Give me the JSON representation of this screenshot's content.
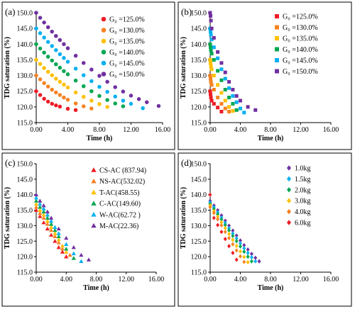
{
  "figure": {
    "colors": {
      "red": "#ee1c25",
      "orange": "#f58220",
      "yellow": "#ffc000",
      "green": "#00a651",
      "cyan": "#00b0f0",
      "purple": "#7030a0"
    }
  },
  "chart_data": [
    {
      "panel_label": "(a)",
      "type": "scatter",
      "marker": "circle",
      "xlabel": "Time (h)",
      "ylabel": "TDG saturation (%)",
      "xlim": [
        0,
        16
      ],
      "ylim": [
        115,
        150
      ],
      "x_ticks": [
        "0.00",
        "4.00",
        "8.00",
        "12.00",
        "16.00"
      ],
      "y_ticks": [
        "115.0",
        "120.0",
        "125.0",
        "130.0",
        "135.0",
        "140.0",
        "145.0",
        "150.0"
      ],
      "legend_position": "top-right",
      "series": [
        {
          "name": "G₀ =125.0%",
          "color": "#ee1c25",
          "x": [
            0,
            0.5,
            1,
            1.5,
            2,
            2.5,
            3,
            4,
            5
          ],
          "y": [
            125,
            123.8,
            122.6,
            121.7,
            121,
            120.5,
            120.1,
            119.4,
            119
          ]
        },
        {
          "name": "G₀ =130.0%",
          "color": "#f58220",
          "x": [
            0,
            0.5,
            1,
            1.5,
            2,
            2.5,
            3,
            3.5,
            4,
            5,
            6,
            7
          ],
          "y": [
            130,
            128.8,
            127.6,
            126.5,
            125.5,
            124.6,
            123.8,
            123,
            122.3,
            121.1,
            120.2,
            119.5
          ]
        },
        {
          "name": "G₀ =135.0%",
          "color": "#ffc000",
          "x": [
            0,
            0.5,
            1,
            1.5,
            2,
            2.5,
            3,
            3.5,
            4,
            5,
            6,
            7,
            8,
            9
          ],
          "y": [
            135,
            133.7,
            132.4,
            131.2,
            130.1,
            129,
            128,
            127.1,
            126.2,
            124.6,
            123.2,
            122,
            120.9,
            120
          ]
        },
        {
          "name": "G₀ =140.0%",
          "color": "#00a651",
          "x": [
            0,
            0.5,
            1,
            1.5,
            2,
            2.5,
            3,
            3.5,
            4,
            5,
            6,
            7,
            8,
            9,
            10,
            11
          ],
          "y": [
            140,
            138.6,
            137.3,
            136,
            134.8,
            133.6,
            132.5,
            131.4,
            130.4,
            128.4,
            126.6,
            125,
            123.5,
            122.2,
            121.1,
            120.2
          ]
        },
        {
          "name": "G₀ =145.0%",
          "color": "#00b0f0",
          "x": [
            0,
            0.5,
            1,
            1.5,
            2,
            2.5,
            3,
            3.5,
            4,
            5,
            6,
            7,
            8,
            9,
            10,
            11,
            12,
            13.5
          ],
          "y": [
            145,
            143.5,
            142.1,
            140.7,
            139.4,
            138.1,
            136.8,
            135.6,
            134.4,
            132.2,
            130.1,
            128.2,
            126.4,
            124.8,
            123.3,
            122,
            121,
            119.6
          ]
        },
        {
          "name": "G₀ =150.0%",
          "color": "#7030a0",
          "x": [
            0,
            0.5,
            1,
            1.5,
            2,
            2.5,
            3,
            3.5,
            4,
            5,
            6,
            7,
            8,
            9,
            10,
            11,
            12,
            13,
            14,
            15.5
          ],
          "y": [
            150,
            148.4,
            146.9,
            145.4,
            144,
            142.6,
            141.3,
            140,
            138.7,
            136.3,
            134,
            131.9,
            129.9,
            128,
            126.3,
            124.9,
            123.6,
            122.5,
            121.5,
            120.3
          ]
        }
      ]
    },
    {
      "panel_label": "(b)",
      "type": "scatter",
      "marker": "square",
      "xlabel": "Time (h)",
      "ylabel": "TDG saturation (%)",
      "xlim": [
        0,
        16
      ],
      "ylim": [
        115,
        150
      ],
      "x_ticks": [
        "0.00",
        "4.00",
        "8.00",
        "12.00",
        "16.00"
      ],
      "y_ticks": [
        "115.0",
        "120.0",
        "125.0",
        "130.0",
        "135.0",
        "140.0",
        "145.0",
        "150.0"
      ],
      "legend_position": "top-right",
      "series": [
        {
          "name": "G₀ =125.0%",
          "color": "#ee1c25",
          "x": [
            0,
            0.05,
            0.1,
            0.2,
            0.5,
            1,
            1.5
          ],
          "y": [
            125,
            124,
            123,
            122,
            121,
            119.8,
            118.5
          ]
        },
        {
          "name": "G₀ =130.0%",
          "color": "#f58220",
          "x": [
            0,
            0.05,
            0.1,
            0.2,
            0.5,
            1,
            1.5,
            2,
            2.5
          ],
          "y": [
            130,
            129,
            128,
            127,
            125.5,
            123,
            121,
            119.5,
            118.5
          ]
        },
        {
          "name": "G₀ =135.0%",
          "color": "#ffc000",
          "x": [
            0,
            0.05,
            0.1,
            0.2,
            0.5,
            1,
            1.5,
            2,
            2.5,
            3
          ],
          "y": [
            135,
            134,
            133,
            132,
            130,
            127,
            124.5,
            122,
            120,
            118.7
          ]
        },
        {
          "name": "G₀ =140.0%",
          "color": "#00a651",
          "x": [
            0,
            0.05,
            0.1,
            0.2,
            0.5,
            1,
            1.5,
            2,
            2.5,
            3,
            3.5
          ],
          "y": [
            140,
            139,
            138,
            137,
            135,
            131.5,
            128.5,
            125.5,
            123,
            121,
            119
          ]
        },
        {
          "name": "G₀ =145.0%",
          "color": "#00b0f0",
          "x": [
            0,
            0.05,
            0.1,
            0.2,
            0.5,
            1,
            1.5,
            2,
            2.5,
            3,
            3.5,
            4,
            4.5
          ],
          "y": [
            145,
            144,
            143,
            141.5,
            139,
            135.5,
            132,
            129,
            126,
            123.5,
            121.5,
            119.5,
            118.2
          ]
        },
        {
          "name": "G₀ =150.0%",
          "color": "#7030a0",
          "x": [
            0,
            0.05,
            0.1,
            0.2,
            0.5,
            1,
            1.5,
            2,
            2.5,
            3,
            3.5,
            4,
            5,
            6
          ],
          "y": [
            150,
            149,
            147.5,
            145,
            142,
            137.5,
            134,
            131,
            128,
            125.5,
            123.5,
            122,
            120,
            119
          ]
        }
      ]
    },
    {
      "panel_label": "(c)",
      "type": "scatter",
      "marker": "triangle",
      "xlabel": "Time (h)",
      "ylabel": "TDG saturation (%)",
      "xlim": [
        0,
        16
      ],
      "ylim": [
        115,
        150
      ],
      "x_ticks": [
        "0.00",
        "4.00",
        "8.00",
        "12.00",
        "16.00"
      ],
      "y_ticks": [
        "115.0",
        "120.0",
        "125.0",
        "130.0",
        "135.0",
        "140.0",
        "145.0",
        "150.0"
      ],
      "legend_position": "top-right",
      "series": [
        {
          "name": "CS-AC (837.94)",
          "color": "#ee1c25",
          "x": [
            0,
            0.5,
            1,
            1.5,
            2,
            2.5,
            3,
            3.5,
            4
          ],
          "y": [
            135,
            133,
            131,
            129,
            127,
            125,
            123,
            121.5,
            120
          ]
        },
        {
          "name": "NS-AC(532.02)",
          "color": "#f58220",
          "x": [
            0,
            0.5,
            1,
            1.5,
            2,
            2.5,
            3,
            3.5,
            4.5
          ],
          "y": [
            136,
            134,
            132.5,
            130.5,
            128.5,
            126.5,
            124.5,
            122.5,
            120.5
          ]
        },
        {
          "name": "T-AC(458.55)",
          "color": "#ffc000",
          "x": [
            0,
            0.5,
            1,
            1.5,
            2,
            2.5,
            3,
            3.5,
            4,
            5
          ],
          "y": [
            137,
            135,
            133.5,
            131.5,
            129.5,
            127.5,
            125.5,
            123.5,
            121.5,
            119.5
          ]
        },
        {
          "name": "C-AC(149.60)",
          "color": "#00a651",
          "x": [
            0,
            0.5,
            1,
            1.5,
            2,
            2.5,
            3,
            4,
            5
          ],
          "y": [
            138,
            136,
            134.5,
            132.5,
            130.5,
            128.5,
            126.5,
            122.5,
            119.5
          ]
        },
        {
          "name": "W-AC(62.72 )",
          "color": "#00b0f0",
          "x": [
            0,
            0.5,
            1,
            1.5,
            2,
            2.5,
            3,
            4,
            5,
            6
          ],
          "y": [
            139,
            137,
            135.5,
            133.5,
            131.5,
            129.5,
            127.5,
            124,
            121,
            118.5
          ]
        },
        {
          "name": "M-AC(22.36)",
          "color": "#7030a0",
          "x": [
            0,
            0.5,
            1,
            1.5,
            2,
            3,
            4,
            5,
            6,
            7
          ],
          "y": [
            140,
            138,
            136.5,
            134.5,
            132.5,
            129,
            126,
            123,
            120.5,
            119
          ]
        }
      ]
    },
    {
      "panel_label": "(d)",
      "type": "scatter",
      "marker": "diamond",
      "xlabel": "Time (h)",
      "ylabel": "TDG saturation (%)",
      "xlim": [
        0,
        16
      ],
      "ylim": [
        115,
        150
      ],
      "x_ticks": [
        "0.00",
        "4.00",
        "8.00",
        "12.00",
        "16.00"
      ],
      "y_ticks": [
        "115.0",
        "120.0",
        "125.0",
        "130.0",
        "135.0",
        "140.0",
        "145.0",
        "150.0"
      ],
      "legend_position": "top-right",
      "series": [
        {
          "name": "1.0kg",
          "color": "#7030a0",
          "x": [
            0,
            0.5,
            1,
            1.5,
            2,
            2.5,
            3,
            3.5,
            4,
            4.5,
            5,
            5.5,
            6,
            6.5
          ],
          "y": [
            138,
            136.5,
            135,
            133.3,
            131.6,
            130,
            128.4,
            126.8,
            125.2,
            123.7,
            122.3,
            120.9,
            119.6,
            118.5
          ]
        },
        {
          "name": "1.5kg",
          "color": "#00b0f0",
          "x": [
            0,
            0.5,
            1,
            1.5,
            2,
            2.5,
            3,
            3.5,
            4,
            4.5,
            5,
            5.5,
            6
          ],
          "y": [
            137.5,
            136,
            134.3,
            132.6,
            130.9,
            129.2,
            127.5,
            125.9,
            124.3,
            122.7,
            121.2,
            119.8,
            118.5
          ]
        },
        {
          "name": "2.0kg",
          "color": "#00a651",
          "x": [
            0,
            0.5,
            1,
            1.5,
            2,
            2.5,
            3,
            3.5,
            4,
            4.5,
            5,
            5.5
          ],
          "y": [
            137,
            135.4,
            133.7,
            132,
            130.2,
            128.5,
            126.7,
            125,
            123.3,
            121.6,
            120,
            118.5
          ]
        },
        {
          "name": "3.0kg",
          "color": "#ffc000",
          "x": [
            0,
            0.5,
            1,
            1.5,
            2,
            2.5,
            3,
            3.5,
            4,
            4.5,
            5
          ],
          "y": [
            136.5,
            134.7,
            132.9,
            131.1,
            129.2,
            127.3,
            125.4,
            123.5,
            121.7,
            119.9,
            118.2
          ]
        },
        {
          "name": "4.0kg",
          "color": "#f58220",
          "x": [
            0,
            0.5,
            1,
            1.5,
            2,
            2.5,
            3,
            3.5,
            4,
            4.5
          ],
          "y": [
            136,
            134.1,
            132.1,
            130.1,
            128,
            126,
            124,
            122,
            120.1,
            118.3
          ]
        },
        {
          "name": "6.0kg",
          "color": "#ee1c25",
          "x": [
            0,
            0.5,
            1,
            1.5,
            2,
            2.5,
            3,
            3.5
          ],
          "y": [
            140,
            132.5,
            130.2,
            128,
            125.7,
            123.4,
            121.2,
            119
          ]
        }
      ]
    }
  ]
}
